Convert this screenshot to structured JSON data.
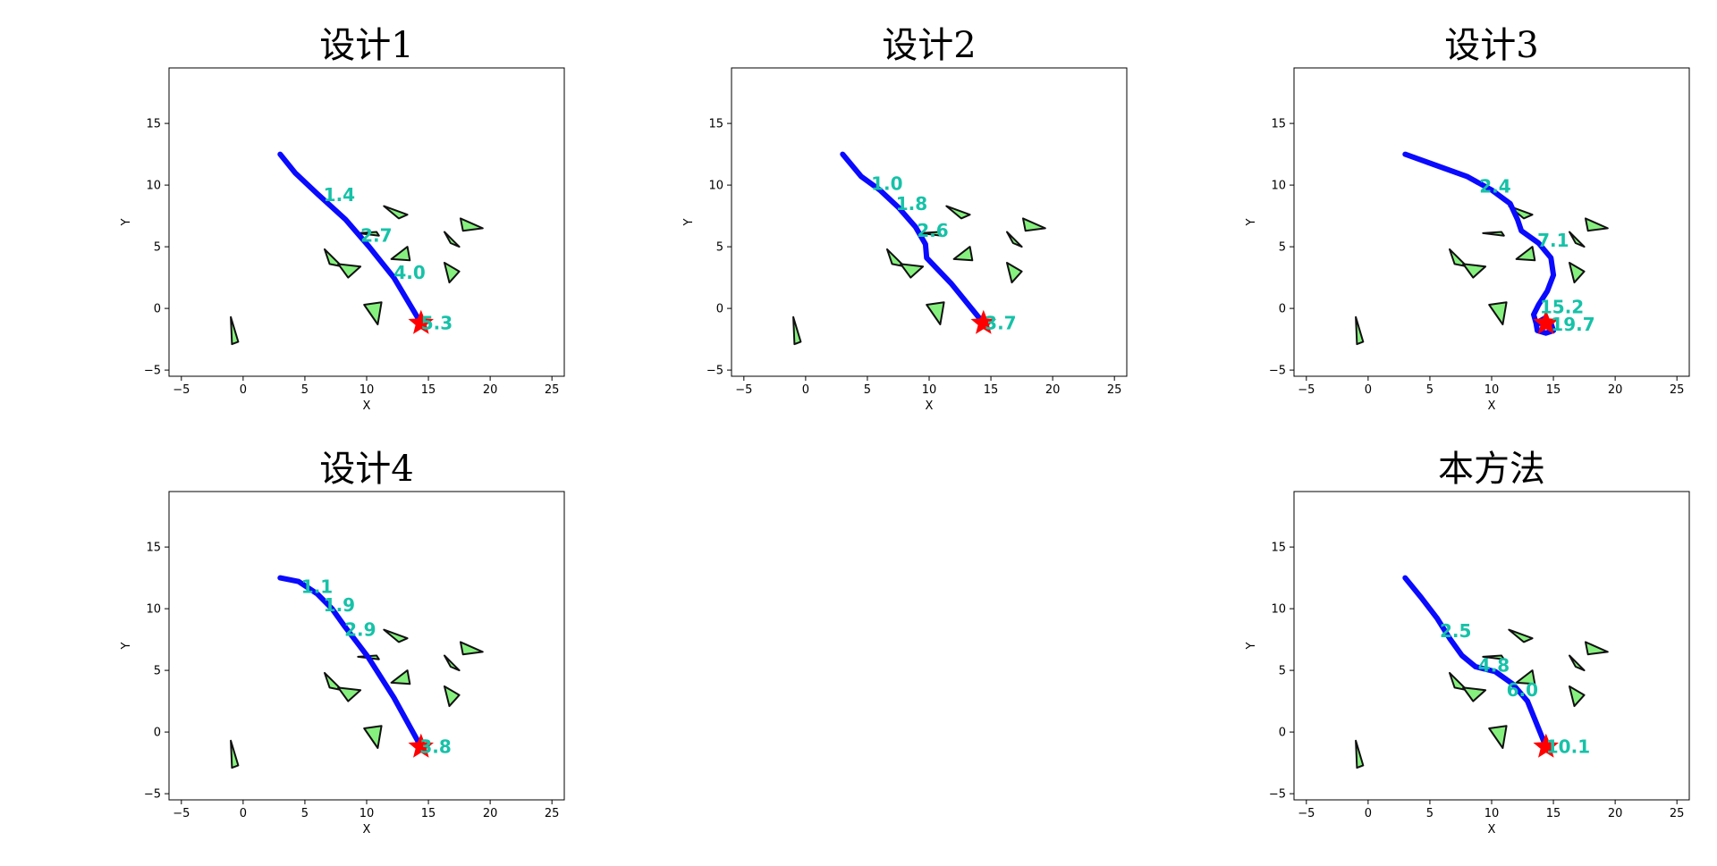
{
  "figure": {
    "background": "#ffffff"
  },
  "style": {
    "path_color": "#0a0aff",
    "annotation_color": "#16c2a8",
    "obstacle_fill": "#86f07e",
    "obstacle_edge": "#111111",
    "goal_color": "#ff0000"
  },
  "obstacles": [
    [
      [
        -1.0,
        -0.7
      ],
      [
        -0.4,
        -2.7
      ],
      [
        -0.9,
        -2.9
      ]
    ],
    [
      [
        11.4,
        8.3
      ],
      [
        12.6,
        7.3
      ],
      [
        13.3,
        7.6
      ]
    ],
    [
      [
        17.6,
        7.3
      ],
      [
        17.8,
        6.3
      ],
      [
        19.4,
        6.5
      ]
    ],
    [
      [
        16.3,
        6.2
      ],
      [
        17.5,
        5.0
      ],
      [
        16.8,
        5.3
      ]
    ],
    [
      [
        9.3,
        6.1
      ],
      [
        10.8,
        6.2
      ],
      [
        11.0,
        5.9
      ]
    ],
    [
      [
        6.6,
        4.8
      ],
      [
        7.0,
        3.6
      ],
      [
        8.0,
        3.4
      ]
    ],
    [
      [
        7.7,
        3.6
      ],
      [
        9.5,
        3.4
      ],
      [
        8.5,
        2.5
      ]
    ],
    [
      [
        12.0,
        4.0
      ],
      [
        13.5,
        3.9
      ],
      [
        13.3,
        5.0
      ]
    ],
    [
      [
        16.3,
        3.7
      ],
      [
        17.5,
        3.0
      ],
      [
        16.7,
        2.1
      ]
    ],
    [
      [
        9.8,
        0.3
      ],
      [
        11.2,
        0.5
      ],
      [
        10.9,
        -1.3
      ]
    ]
  ],
  "chart_data": [
    {
      "type": "scatter",
      "title": "设计1",
      "xlabel": "X",
      "ylabel": "Y",
      "xlim": [
        -6,
        26
      ],
      "ylim": [
        -5.5,
        19.5
      ],
      "xticks": [
        -5,
        0,
        5,
        10,
        15,
        20,
        25
      ],
      "yticks": [
        -5,
        0,
        5,
        10,
        15
      ],
      "grid": false,
      "path": [
        [
          3.0,
          12.5
        ],
        [
          4.2,
          11.0
        ],
        [
          6.0,
          9.3
        ],
        [
          8.3,
          7.2
        ],
        [
          10.2,
          5.0
        ],
        [
          12.2,
          2.5
        ],
        [
          14.4,
          -1.2
        ]
      ],
      "goal": [
        14.4,
        -1.2
      ],
      "annotations": [
        {
          "text": "1.4",
          "x": 6.5,
          "y": 9.2
        },
        {
          "text": "2.7",
          "x": 9.5,
          "y": 5.9
        },
        {
          "text": "4.0",
          "x": 12.2,
          "y": 2.9
        },
        {
          "text": "5.3",
          "x": 14.4,
          "y": -1.2
        }
      ]
    },
    {
      "type": "scatter",
      "title": "设计2",
      "xlabel": "X",
      "ylabel": "Y",
      "xlim": [
        -6,
        26
      ],
      "ylim": [
        -5.5,
        19.5
      ],
      "xticks": [
        -5,
        0,
        5,
        10,
        15,
        20,
        25
      ],
      "yticks": [
        -5,
        0,
        5,
        10,
        15
      ],
      "grid": false,
      "path": [
        [
          3.0,
          12.5
        ],
        [
          4.5,
          10.7
        ],
        [
          6.0,
          9.6
        ],
        [
          7.5,
          8.2
        ],
        [
          8.9,
          6.6
        ],
        [
          9.7,
          5.2
        ],
        [
          9.8,
          4.1
        ],
        [
          11.8,
          2.0
        ],
        [
          14.4,
          -1.2
        ]
      ],
      "goal": [
        14.4,
        -1.2
      ],
      "annotations": [
        {
          "text": "1.0",
          "x": 5.3,
          "y": 10.1
        },
        {
          "text": "1.8",
          "x": 7.3,
          "y": 8.5
        },
        {
          "text": "2.6",
          "x": 9.0,
          "y": 6.3
        },
        {
          "text": "3.7",
          "x": 14.5,
          "y": -1.2
        }
      ]
    },
    {
      "type": "scatter",
      "title": "设计3",
      "xlabel": "X",
      "ylabel": "Y",
      "xlim": [
        -6,
        26
      ],
      "ylim": [
        -5.5,
        19.5
      ],
      "xticks": [
        -5,
        0,
        5,
        10,
        15,
        20,
        25
      ],
      "yticks": [
        -5,
        0,
        5,
        10,
        15
      ],
      "grid": false,
      "path": [
        [
          3.0,
          12.5
        ],
        [
          5.5,
          11.6
        ],
        [
          8.0,
          10.7
        ],
        [
          10.0,
          9.6
        ],
        [
          11.5,
          8.5
        ],
        [
          12.1,
          7.2
        ],
        [
          12.4,
          6.3
        ],
        [
          13.8,
          5.3
        ],
        [
          14.8,
          4.1
        ],
        [
          15.0,
          2.7
        ],
        [
          14.5,
          1.4
        ],
        [
          13.8,
          0.3
        ],
        [
          13.4,
          -0.5
        ],
        [
          13.6,
          -1.2
        ],
        [
          14.3,
          -0.8
        ],
        [
          14.8,
          -1.2
        ],
        [
          15.0,
          -1.8
        ],
        [
          14.4,
          -2.0
        ],
        [
          13.7,
          -1.8
        ],
        [
          13.6,
          -1.2
        ],
        [
          14.4,
          -1.2
        ]
      ],
      "goal": [
        14.4,
        -1.2
      ],
      "annotations": [
        {
          "text": "2.4",
          "x": 9.0,
          "y": 9.9
        },
        {
          "text": "7.1",
          "x": 13.7,
          "y": 5.5
        },
        {
          "text": "15.2",
          "x": 13.9,
          "y": 0.1
        },
        {
          "text": "19.7",
          "x": 14.8,
          "y": -1.3
        }
      ]
    },
    {
      "type": "scatter",
      "title": "设计4",
      "xlabel": "X",
      "ylabel": "Y",
      "xlim": [
        -6,
        26
      ],
      "ylim": [
        -5.5,
        19.5
      ],
      "xticks": [
        -5,
        0,
        5,
        10,
        15,
        20,
        25
      ],
      "yticks": [
        -5,
        0,
        5,
        10,
        15
      ],
      "grid": false,
      "path": [
        [
          3.0,
          12.5
        ],
        [
          4.5,
          12.2
        ],
        [
          6.0,
          11.2
        ],
        [
          7.2,
          10.0
        ],
        [
          8.2,
          8.6
        ],
        [
          9.2,
          7.3
        ],
        [
          10.1,
          6.1
        ],
        [
          12.2,
          2.8
        ],
        [
          14.4,
          -1.2
        ]
      ],
      "goal": [
        14.4,
        -1.2
      ],
      "annotations": [
        {
          "text": "1.1",
          "x": 4.7,
          "y": 11.8
        },
        {
          "text": "1.9",
          "x": 6.5,
          "y": 10.3
        },
        {
          "text": "2.9",
          "x": 8.2,
          "y": 8.3
        },
        {
          "text": "3.8",
          "x": 14.3,
          "y": -1.2
        }
      ]
    },
    {
      "type": "scatter",
      "title": "本方法",
      "xlabel": "X",
      "ylabel": "Y",
      "xlim": [
        -6,
        26
      ],
      "ylim": [
        -5.5,
        19.5
      ],
      "xticks": [
        -5,
        0,
        5,
        10,
        15,
        20,
        25
      ],
      "yticks": [
        -5,
        0,
        5,
        10,
        15
      ],
      "grid": false,
      "path": [
        [
          3.0,
          12.5
        ],
        [
          4.3,
          10.9
        ],
        [
          5.6,
          9.2
        ],
        [
          6.6,
          7.6
        ],
        [
          7.6,
          6.2
        ],
        [
          8.7,
          5.3
        ],
        [
          10.3,
          4.9
        ],
        [
          11.7,
          3.9
        ],
        [
          12.9,
          2.5
        ],
        [
          14.4,
          -1.2
        ]
      ],
      "goal": [
        14.4,
        -1.2
      ],
      "annotations": [
        {
          "text": "2.5",
          "x": 5.8,
          "y": 8.2
        },
        {
          "text": "4.8",
          "x": 8.9,
          "y": 5.4
        },
        {
          "text": "6.0",
          "x": 11.2,
          "y": 3.4
        },
        {
          "text": "10.1",
          "x": 14.4,
          "y": -1.2
        }
      ]
    }
  ]
}
